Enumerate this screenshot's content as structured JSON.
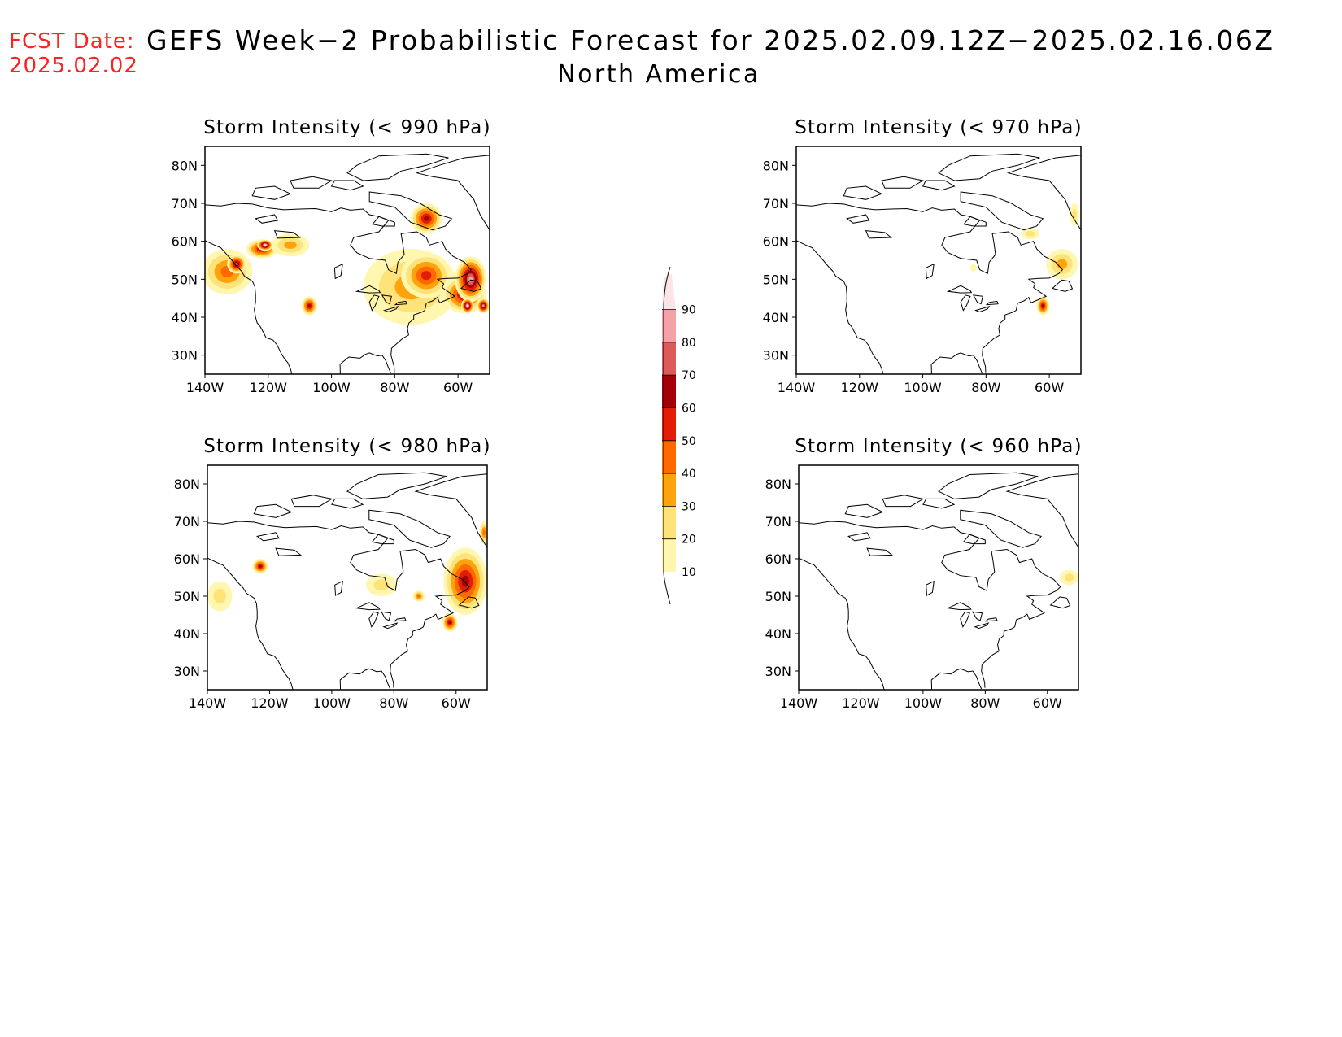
{
  "header": {
    "fcst_label": "FCST Date:",
    "fcst_date": "2025.02.02",
    "title": "GEFS Week−2 Probabilistic Forecast for 2025.02.09.12Z−2025.02.16.06Z",
    "subtitle": "North America"
  },
  "axes": {
    "lon_ticks": [
      -140,
      -120,
      -100,
      -80,
      -60
    ],
    "lon_labels": [
      "140W",
      "120W",
      "100W",
      "80W",
      "60W"
    ],
    "lat_ticks": [
      30,
      40,
      50,
      60,
      70,
      80
    ],
    "lat_labels": [
      "30N",
      "40N",
      "50N",
      "60N",
      "70N",
      "80N"
    ],
    "lon_range": [
      -140,
      -50
    ],
    "lat_range": [
      25,
      85
    ]
  },
  "colorbar": {
    "levels": [
      10,
      20,
      30,
      40,
      50,
      60,
      70,
      80,
      90
    ],
    "labels": [
      "10",
      "20",
      "30",
      "40",
      "50",
      "60",
      "70",
      "80",
      "90"
    ],
    "colors": [
      "#fff6b0",
      "#fee27a",
      "#fea30e",
      "#ff6a00",
      "#e31c05",
      "#a50005",
      "#dc5a5a",
      "#f4a2a8",
      "#fde4e8"
    ]
  },
  "chart_data": [
    {
      "type": "map",
      "title": "Storm Intensity (< 990 hPa)",
      "blobs": [
        {
          "lon": -133,
          "lat": 52,
          "rx": 8,
          "ry": 6,
          "value": 40
        },
        {
          "lon": -130,
          "lat": 54,
          "rx": 3,
          "ry": 2.5,
          "value": 70
        },
        {
          "lon": -122,
          "lat": 58,
          "rx": 5,
          "ry": 2.5,
          "value": 60
        },
        {
          "lon": -121,
          "lat": 59,
          "rx": 2.5,
          "ry": 1.5,
          "value": 90
        },
        {
          "lon": -113,
          "lat": 59,
          "rx": 6,
          "ry": 3,
          "value": 30
        },
        {
          "lon": -107,
          "lat": 43,
          "rx": 2.5,
          "ry": 2.5,
          "value": 60
        },
        {
          "lon": -75,
          "lat": 48,
          "rx": 15,
          "ry": 10,
          "value": 30
        },
        {
          "lon": -70,
          "lat": 51,
          "rx": 8,
          "ry": 6,
          "value": 50
        },
        {
          "lon": -70,
          "lat": 66,
          "rx": 5,
          "ry": 4,
          "value": 60
        },
        {
          "lon": -58,
          "lat": 46,
          "rx": 7,
          "ry": 5,
          "value": 60
        },
        {
          "lon": -56,
          "lat": 50,
          "rx": 5,
          "ry": 6,
          "value": 80
        },
        {
          "lon": -57,
          "lat": 43,
          "rx": 2,
          "ry": 2,
          "value": 90
        },
        {
          "lon": -52,
          "lat": 43,
          "rx": 2,
          "ry": 2,
          "value": 80
        }
      ]
    },
    {
      "type": "map",
      "title": "Storm Intensity (< 970 hPa)",
      "blobs": [
        {
          "lon": -56,
          "lat": 54,
          "rx": 5,
          "ry": 4,
          "value": 30
        },
        {
          "lon": -62,
          "lat": 43,
          "rx": 2,
          "ry": 2.5,
          "value": 60
        },
        {
          "lon": -66,
          "lat": 62,
          "rx": 3,
          "ry": 1.5,
          "value": 20
        },
        {
          "lon": -52,
          "lat": 67,
          "rx": 1.5,
          "ry": 3,
          "value": 20
        },
        {
          "lon": -84,
          "lat": 53,
          "rx": 1,
          "ry": 1,
          "value": 10
        }
      ]
    },
    {
      "type": "map",
      "title": "Storm Intensity (< 980 hPa)",
      "blobs": [
        {
          "lon": -136,
          "lat": 50,
          "rx": 4,
          "ry": 4,
          "value": 20
        },
        {
          "lon": -123,
          "lat": 58,
          "rx": 2.5,
          "ry": 2,
          "value": 60
        },
        {
          "lon": -84,
          "lat": 53,
          "rx": 5,
          "ry": 3,
          "value": 20
        },
        {
          "lon": -72,
          "lat": 50,
          "rx": 2,
          "ry": 1.5,
          "value": 40
        },
        {
          "lon": -57,
          "lat": 54,
          "rx": 7,
          "ry": 9,
          "value": 60
        },
        {
          "lon": -62,
          "lat": 43,
          "rx": 2.5,
          "ry": 2.5,
          "value": 60
        },
        {
          "lon": -51,
          "lat": 67,
          "rx": 1.5,
          "ry": 3,
          "value": 40
        }
      ]
    },
    {
      "type": "map",
      "title": "Storm Intensity (< 960 hPa)",
      "blobs": [
        {
          "lon": -53,
          "lat": 55,
          "rx": 3,
          "ry": 2,
          "value": 20
        }
      ]
    }
  ]
}
